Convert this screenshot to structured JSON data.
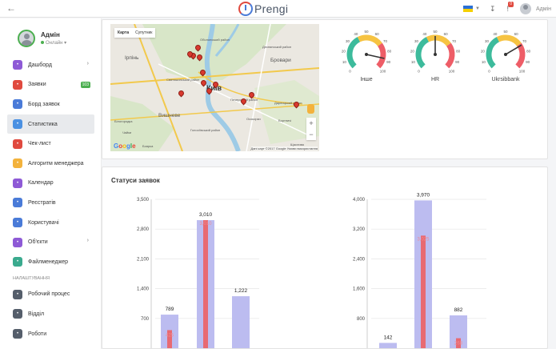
{
  "topbar": {
    "back_icon": "arrow-left-icon",
    "logo_text": "Prengi",
    "badge_count": "0",
    "user_name": "Адмін",
    "language_flag": "ukraine-flag-icon"
  },
  "profile": {
    "name": "Адмін",
    "status": "Онлайн"
  },
  "nav": {
    "items": [
      {
        "label": "Дашборд",
        "icon": "dashboard-icon",
        "color": "#8e5ad6",
        "arrow": true
      },
      {
        "label": "Заявки",
        "icon": "inbox-icon",
        "color": "#e04a3f",
        "badge": "103"
      },
      {
        "label": "Борд заявок",
        "icon": "board-icon",
        "color": "#4a7bd8"
      },
      {
        "label": "Статистика",
        "icon": "chart-icon",
        "color": "#4a90e2",
        "active": true
      },
      {
        "label": "Чек-лист",
        "icon": "checklist-icon",
        "color": "#e04a3f"
      },
      {
        "label": "Алгоритм менеджера",
        "icon": "lightbulb-icon",
        "color": "#f3b23c"
      },
      {
        "label": "Календар",
        "icon": "calendar-icon",
        "color": "#8e5ad6"
      },
      {
        "label": "Реєстратів",
        "icon": "list-icon",
        "color": "#4a7bd8"
      },
      {
        "label": "Користувачі",
        "icon": "users-icon",
        "color": "#4a7bd8"
      },
      {
        "label": "Об'єкти",
        "icon": "building-icon",
        "color": "#8e5ad6",
        "arrow": true
      },
      {
        "label": "Файлменеджер",
        "icon": "folder-icon",
        "color": "#3aaa8e"
      }
    ],
    "section_label": "НАЛАШТУВАННЯ",
    "settings_items": [
      {
        "label": "Робочий процес",
        "icon": "workflow-icon",
        "color": "#555e6b"
      },
      {
        "label": "Відділ",
        "icon": "department-icon",
        "color": "#555e6b"
      },
      {
        "label": "Роботи",
        "icon": "gear-icon",
        "color": "#555e6b"
      }
    ]
  },
  "map": {
    "tab_map": "Карта",
    "tab_satellite": "Супутник",
    "city_label": "Київ",
    "places": [
      "Ірпінь",
      "Бровари",
      "Вишневе",
      "Оболонський район",
      "Деснянський район",
      "Дарницький район",
      "Голосіївський район",
      "Святошинський район",
      "Печерський район",
      "Білогородка",
      "Бортничі",
      "Боярка",
      "Щаслива",
      "Осокорки",
      "Чайки"
    ],
    "google_label": "Google",
    "footer": "Дані карт ©2017 Google   Умови використання"
  },
  "gauges": [
    {
      "label": "Інше",
      "value_fraction": 0.88,
      "ticks": [
        "0",
        "10",
        "20",
        "30",
        "40",
        "50",
        "60",
        "70",
        "80",
        "90",
        "100"
      ]
    },
    {
      "label": "HR",
      "value_fraction": 0.5,
      "ticks": [
        "0",
        "10",
        "20",
        "30",
        "40",
        "50",
        "60",
        "70",
        "80",
        "90",
        "100"
      ]
    },
    {
      "label": "Ukrsibbank",
      "value_fraction": 0.72,
      "ticks": [
        "0",
        "10",
        "20",
        "30",
        "40",
        "50",
        "60",
        "70",
        "80",
        "90",
        "100"
      ]
    }
  ],
  "chart_section": {
    "title": "Статуси заявок"
  },
  "chart_data": [
    {
      "type": "bar",
      "ylim": [
        0,
        3500
      ],
      "yticks": [
        "3,500",
        "2,800",
        "2,100",
        "1,400",
        "700"
      ],
      "ytick_values": [
        3500,
        2800,
        2100,
        1400,
        700
      ],
      "series": [
        {
          "values": [
            789,
            3010,
            1222
          ],
          "labels": [
            "789",
            "3,010",
            "1,222"
          ],
          "color": "#bcbcf0"
        },
        {
          "values": [
            425,
            3010,
            null
          ],
          "labels": [
            "425",
            "3,010",
            ""
          ],
          "color": "#e86a72"
        }
      ],
      "grid": true
    },
    {
      "type": "bar",
      "ylim": [
        0,
        4000
      ],
      "yticks": [
        "4,000",
        "3,200",
        "2,400",
        "1,600",
        "800"
      ],
      "ytick_values": [
        4000,
        3200,
        2400,
        1600,
        800
      ],
      "series": [
        {
          "values": [
            142,
            3970,
            882
          ],
          "labels": [
            "142",
            "3,970",
            "882"
          ],
          "color": "#bcbcf0"
        },
        {
          "values": [
            null,
            3025,
            268
          ],
          "labels": [
            "",
            "3,025",
            "268"
          ],
          "color": "#e86a72"
        }
      ],
      "grid": true
    }
  ]
}
